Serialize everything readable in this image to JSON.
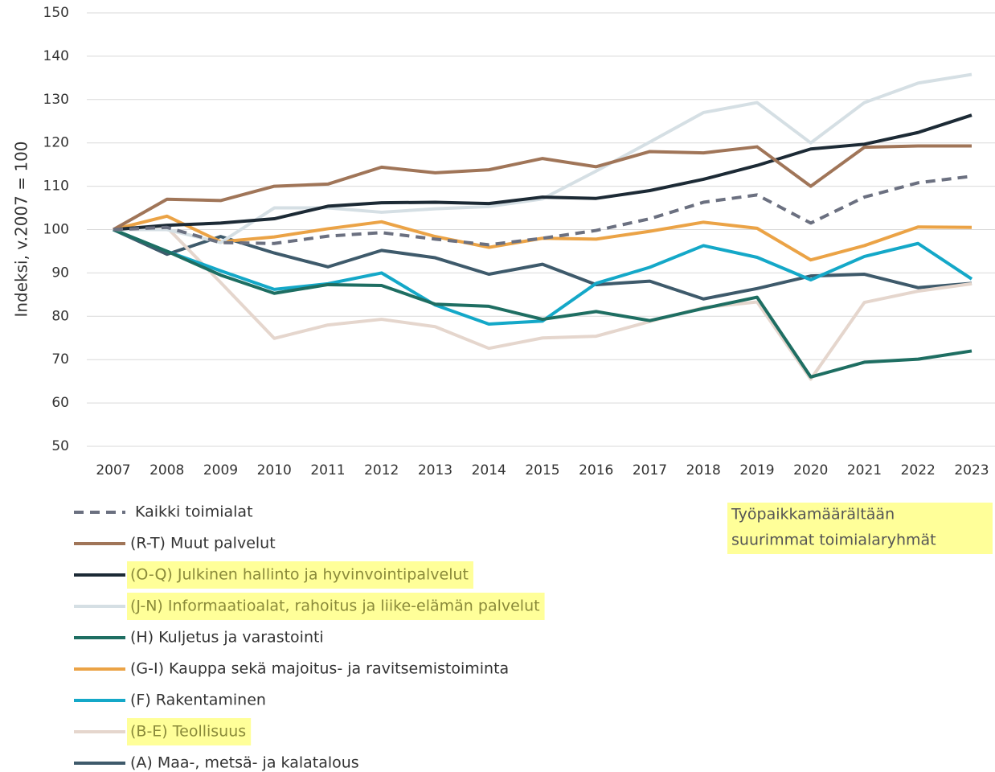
{
  "chart_data": {
    "type": "line",
    "y_label": "Indeksi, v.2007 = 100",
    "annotation": [
      "Työpaikkamäärältään",
      "suurimmat toimialaryhmät"
    ],
    "categories": [
      "2007",
      "2008",
      "2009",
      "2010",
      "2011",
      "2012",
      "2013",
      "2014",
      "2015",
      "2016",
      "2017",
      "2018",
      "2019",
      "2020",
      "2021",
      "2022",
      "2023"
    ],
    "ylim": [
      50,
      150
    ],
    "yticks": [
      50,
      60,
      70,
      80,
      90,
      100,
      110,
      120,
      130,
      140,
      150
    ],
    "grid": true,
    "series": [
      {
        "name": "Kaikki toimialat",
        "color": "#6b7080",
        "dashed": true,
        "values": [
          100,
          100.5,
          97,
          96.8,
          98.5,
          99.3,
          97.8,
          96.5,
          98,
          99.8,
          102.5,
          106.3,
          108,
          101.5,
          107.5,
          110.8,
          112.3
        ]
      },
      {
        "name": "(R-T) Muut palvelut",
        "color": "#a07558",
        "values": [
          100,
          107,
          106.7,
          110,
          110.5,
          114.4,
          113.1,
          113.8,
          116.4,
          114.5,
          118,
          117.7,
          119.1,
          110,
          119,
          119.3,
          119.3
        ]
      },
      {
        "name": "(O-Q) Julkinen hallinto ja hyvinvointipalvelut",
        "color": "#1c2a35",
        "highlight": true,
        "values": [
          100,
          101,
          101.5,
          102.5,
          105.4,
          106.2,
          106.3,
          106,
          107.5,
          107.2,
          109,
          111.6,
          114.8,
          118.6,
          119.7,
          122.4,
          126.4
        ]
      },
      {
        "name": "(J-N) Informaatioalat, rahoitus ja liike-elämän palvelut",
        "color": "#d5dfe4",
        "highlight": true,
        "values": [
          100,
          100,
          97,
          105,
          105,
          104,
          104.8,
          105.3,
          107.1,
          113.5,
          120.2,
          127,
          129.3,
          120,
          129.3,
          133.8,
          135.8
        ]
      },
      {
        "name": "(H) Kuljetus ja varastointi",
        "color": "#1e6e62",
        "values": [
          100,
          95,
          89.5,
          85.3,
          87.3,
          87.1,
          82.8,
          82.3,
          79.3,
          81.1,
          79,
          81.8,
          84.4,
          66,
          69.4,
          70.1,
          72
        ]
      },
      {
        "name": "(G-I) Kauppa sekä majoitus- ja ravitsemistoiminta",
        "color": "#eba346",
        "values": [
          100,
          103.1,
          97.2,
          98.3,
          100.2,
          101.8,
          98.4,
          95.9,
          98,
          97.8,
          99.6,
          101.7,
          100.3,
          93,
          96.3,
          100.6,
          100.5
        ]
      },
      {
        "name": "(F) Rakentaminen",
        "color": "#14a8c8",
        "values": [
          100,
          95,
          90.5,
          86.2,
          87.5,
          90,
          82.6,
          78.2,
          78.9,
          87.6,
          91.3,
          96.3,
          93.6,
          88.4,
          93.8,
          96.8,
          88.6
        ]
      },
      {
        "name": "(B-E) Teollisuus",
        "color": "#e5d6cd",
        "highlight": true,
        "values": [
          100,
          100.5,
          87.8,
          74.9,
          78,
          79.3,
          77.6,
          72.6,
          75,
          75.4,
          78.8,
          82,
          83.3,
          65.5,
          83.2,
          85.8,
          87.5
        ]
      },
      {
        "name": "(A) Maa-, metsä- ja kalatalous",
        "color": "#3e5a6b",
        "values": [
          100,
          94.3,
          98.4,
          94.6,
          91.4,
          95.2,
          93.5,
          89.7,
          92,
          87.3,
          88.1,
          84,
          86.4,
          89.3,
          89.7,
          86.6,
          87.6
        ]
      }
    ]
  }
}
